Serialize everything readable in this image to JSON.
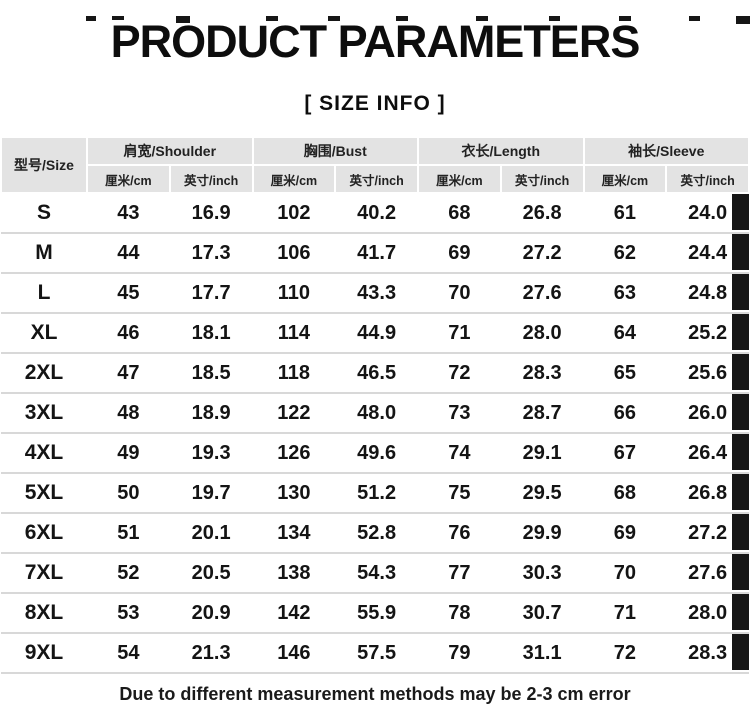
{
  "page": {
    "title": "PRODUCT PARAMETERS",
    "subtitle": "[ SIZE  INFO ]",
    "footnote": "Due to different measurement methods may be 2-3 cm error"
  },
  "table": {
    "size_header": "型号/Size",
    "groups": [
      {
        "label": "肩宽/Shoulder"
      },
      {
        "label": "胸围/Bust"
      },
      {
        "label": "衣长/Length"
      },
      {
        "label": "袖长/Sleeve"
      }
    ],
    "unit_cm": "厘米/cm",
    "unit_inch": "英寸/inch",
    "rows": [
      {
        "size": "S",
        "values": [
          "43",
          "16.9",
          "102",
          "40.2",
          "68",
          "26.8",
          "61",
          "24.0"
        ]
      },
      {
        "size": "M",
        "values": [
          "44",
          "17.3",
          "106",
          "41.7",
          "69",
          "27.2",
          "62",
          "24.4"
        ]
      },
      {
        "size": "L",
        "values": [
          "45",
          "17.7",
          "110",
          "43.3",
          "70",
          "27.6",
          "63",
          "24.8"
        ]
      },
      {
        "size": "XL",
        "values": [
          "46",
          "18.1",
          "114",
          "44.9",
          "71",
          "28.0",
          "64",
          "25.2"
        ]
      },
      {
        "size": "2XL",
        "values": [
          "47",
          "18.5",
          "118",
          "46.5",
          "72",
          "28.3",
          "65",
          "25.6"
        ]
      },
      {
        "size": "3XL",
        "values": [
          "48",
          "18.9",
          "122",
          "48.0",
          "73",
          "28.7",
          "66",
          "26.0"
        ]
      },
      {
        "size": "4XL",
        "values": [
          "49",
          "19.3",
          "126",
          "49.6",
          "74",
          "29.1",
          "67",
          "26.4"
        ]
      },
      {
        "size": "5XL",
        "values": [
          "50",
          "19.7",
          "130",
          "51.2",
          "75",
          "29.5",
          "68",
          "26.8"
        ]
      },
      {
        "size": "6XL",
        "values": [
          "51",
          "20.1",
          "134",
          "52.8",
          "76",
          "29.9",
          "69",
          "27.2"
        ]
      },
      {
        "size": "7XL",
        "values": [
          "52",
          "20.5",
          "138",
          "54.3",
          "77",
          "30.3",
          "70",
          "27.6"
        ]
      },
      {
        "size": "8XL",
        "values": [
          "53",
          "20.9",
          "142",
          "55.9",
          "78",
          "30.7",
          "71",
          "28.0"
        ]
      },
      {
        "size": "9XL",
        "values": [
          "54",
          "21.3",
          "146",
          "57.5",
          "79",
          "31.1",
          "72",
          "28.3"
        ]
      }
    ]
  }
}
